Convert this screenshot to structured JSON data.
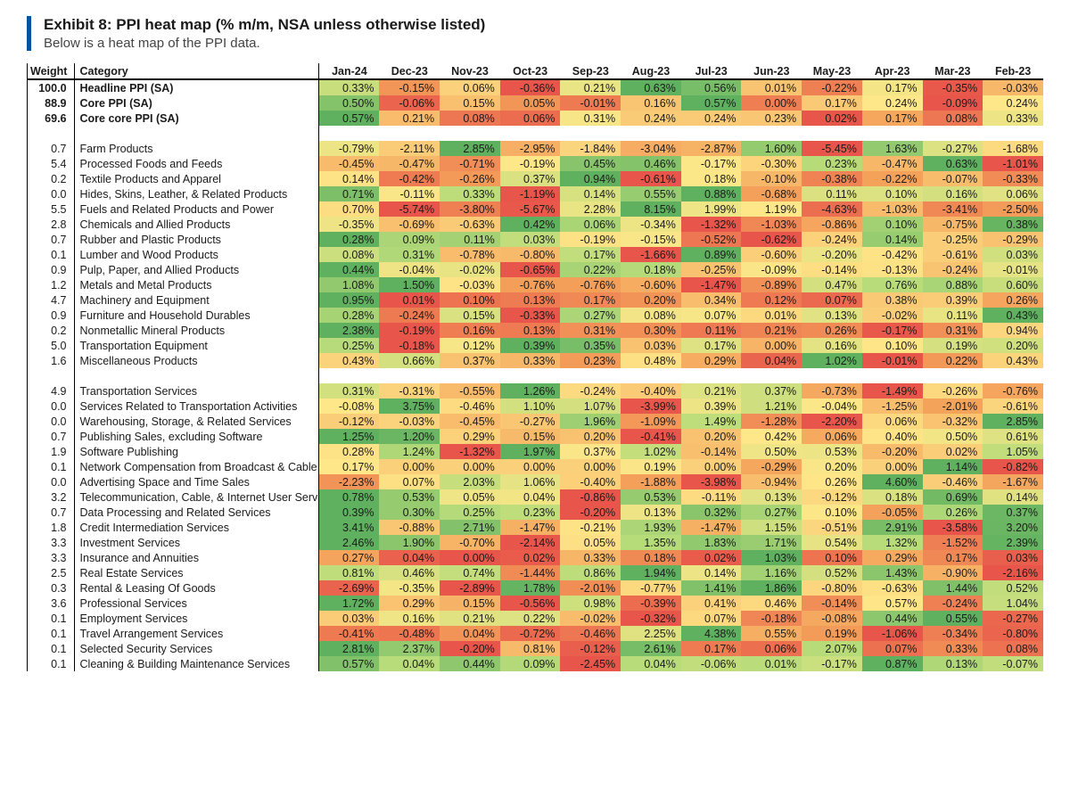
{
  "title": "Exhibit 8: PPI heat map (% m/m, NSA unless otherwise listed)",
  "subtitle": "Below is a heat map of the PPI data.",
  "weight_header": "Weight",
  "category_header": "Category",
  "months": [
    "Jan-24",
    "Dec-23",
    "Nov-23",
    "Oct-23",
    "Sep-23",
    "Aug-23",
    "Jul-23",
    "Jun-23",
    "May-23",
    "Apr-23",
    "Mar-23",
    "Feb-23"
  ],
  "color_scale": {
    "low": "#e8564b",
    "lowmid": "#f4a15a",
    "mid": "#fee789",
    "highmid": "#b9dc7a",
    "high": "#5fb15f"
  },
  "groups": [
    {
      "bold": true,
      "rows": [
        {
          "w": "100.0",
          "cat": "Headline PPI (SA)",
          "v": [
            0.33,
            -0.15,
            0.06,
            -0.36,
            0.21,
            0.63,
            0.56,
            0.01,
            -0.22,
            0.17,
            -0.35,
            -0.03
          ]
        },
        {
          "w": "88.9",
          "cat": "Core PPI (SA)",
          "v": [
            0.5,
            -0.06,
            0.15,
            0.05,
            -0.01,
            0.16,
            0.57,
            0.0,
            0.17,
            0.24,
            -0.09,
            0.24
          ]
        },
        {
          "w": "69.6",
          "cat": "Core core PPI (SA)",
          "v": [
            0.57,
            0.21,
            0.08,
            0.06,
            0.31,
            0.24,
            0.24,
            0.23,
            0.02,
            0.17,
            0.08,
            0.33
          ]
        }
      ]
    },
    {
      "bold": false,
      "rows": [
        {
          "w": "0.7",
          "cat": "Farm Products",
          "v": [
            -0.79,
            -2.11,
            2.85,
            -2.95,
            -1.84,
            -3.04,
            -2.87,
            1.6,
            -5.45,
            1.63,
            -0.27,
            -1.68
          ]
        },
        {
          "w": "5.4",
          "cat": "Processed Foods and Feeds",
          "v": [
            -0.45,
            -0.47,
            -0.71,
            -0.19,
            0.45,
            0.46,
            -0.17,
            -0.3,
            0.23,
            -0.47,
            0.63,
            -1.01
          ]
        },
        {
          "w": "0.2",
          "cat": "Textile Products and Apparel",
          "v": [
            0.14,
            -0.42,
            -0.26,
            0.37,
            0.94,
            -0.61,
            0.18,
            -0.1,
            -0.38,
            -0.22,
            -0.07,
            -0.33
          ]
        },
        {
          "w": "0.0",
          "cat": "Hides, Skins, Leather, & Related Products",
          "v": [
            0.71,
            -0.11,
            0.33,
            -1.19,
            0.14,
            0.55,
            0.88,
            -0.68,
            0.11,
            0.1,
            0.16,
            0.06
          ]
        },
        {
          "w": "5.5",
          "cat": "Fuels and Related Products and Power",
          "v": [
            0.7,
            -5.74,
            -3.8,
            -5.67,
            2.28,
            8.15,
            1.99,
            1.19,
            -4.63,
            -1.03,
            -3.41,
            -2.5
          ]
        },
        {
          "w": "2.8",
          "cat": "Chemicals and Allied Products",
          "v": [
            -0.35,
            -0.69,
            -0.63,
            0.42,
            0.06,
            -0.34,
            -1.32,
            -1.03,
            -0.86,
            0.1,
            -0.75,
            0.38
          ]
        },
        {
          "w": "0.7",
          "cat": "Rubber and Plastic Products",
          "v": [
            0.28,
            0.09,
            0.11,
            0.03,
            -0.19,
            -0.15,
            -0.52,
            -0.62,
            -0.24,
            0.14,
            -0.25,
            -0.29
          ]
        },
        {
          "w": "0.1",
          "cat": "Lumber and Wood Products",
          "v": [
            0.08,
            0.31,
            -0.78,
            -0.8,
            0.17,
            -1.66,
            0.89,
            -0.6,
            -0.2,
            -0.42,
            -0.61,
            0.03
          ]
        },
        {
          "w": "0.9",
          "cat": "Pulp, Paper, and Allied Products",
          "v": [
            0.44,
            -0.04,
            -0.02,
            -0.65,
            0.22,
            0.18,
            -0.25,
            -0.09,
            -0.14,
            -0.13,
            -0.24,
            -0.01
          ]
        },
        {
          "w": "1.2",
          "cat": "Metals and Metal Products",
          "v": [
            1.08,
            1.5,
            -0.03,
            -0.76,
            -0.76,
            -0.6,
            -1.47,
            -0.89,
            0.47,
            0.76,
            0.88,
            0.6
          ]
        },
        {
          "w": "4.7",
          "cat": "Machinery and Equipment",
          "v": [
            0.95,
            0.01,
            0.1,
            0.13,
            0.17,
            0.2,
            0.34,
            0.12,
            0.07,
            0.38,
            0.39,
            0.26
          ]
        },
        {
          "w": "0.9",
          "cat": "Furniture and Household Durables",
          "v": [
            0.28,
            -0.24,
            0.15,
            -0.33,
            0.27,
            0.08,
            0.07,
            0.01,
            0.13,
            -0.02,
            0.11,
            0.43
          ]
        },
        {
          "w": "0.2",
          "cat": "Nonmetallic Mineral Products",
          "v": [
            2.38,
            -0.19,
            0.16,
            0.13,
            0.31,
            0.3,
            0.11,
            0.21,
            0.26,
            -0.17,
            0.31,
            0.94
          ]
        },
        {
          "w": "5.0",
          "cat": "Transportation Equipment",
          "v": [
            0.25,
            -0.18,
            0.12,
            0.39,
            0.35,
            0.03,
            0.17,
            0.0,
            0.16,
            0.1,
            0.19,
            0.2
          ]
        },
        {
          "w": "1.6",
          "cat": "Miscellaneous Products",
          "v": [
            0.43,
            0.66,
            0.37,
            0.33,
            0.23,
            0.48,
            0.29,
            0.04,
            1.02,
            -0.01,
            0.22,
            0.43
          ]
        }
      ]
    },
    {
      "bold": false,
      "rows": [
        {
          "w": "4.9",
          "cat": "Transportation Services",
          "v": [
            0.31,
            -0.31,
            -0.55,
            1.26,
            -0.24,
            -0.4,
            0.21,
            0.37,
            -0.73,
            -1.49,
            -0.26,
            -0.76
          ]
        },
        {
          "w": "0.0",
          "cat": "Services Related to Transportation Activities",
          "v": [
            -0.08,
            3.75,
            -0.46,
            1.1,
            1.07,
            -3.99,
            0.39,
            1.21,
            -0.04,
            -1.25,
            -2.01,
            -0.61
          ]
        },
        {
          "w": "0.0",
          "cat": "Warehousing, Storage, & Related Services",
          "v": [
            -0.12,
            -0.03,
            -0.45,
            -0.27,
            1.96,
            -1.09,
            1.49,
            -1.28,
            -2.2,
            0.06,
            -0.32,
            2.85
          ]
        },
        {
          "w": "0.7",
          "cat": "Publishing Sales, excluding Software",
          "v": [
            1.25,
            1.2,
            0.29,
            0.15,
            0.2,
            -0.41,
            0.2,
            0.42,
            0.06,
            0.4,
            0.5,
            0.61
          ]
        },
        {
          "w": "1.9",
          "cat": "Software Publishing",
          "v": [
            0.28,
            1.24,
            -1.32,
            1.97,
            0.37,
            1.02,
            -0.14,
            0.5,
            0.53,
            -0.2,
            0.02,
            1.05
          ]
        },
        {
          "w": "0.1",
          "cat": "Network Compensation from Broadcast & Cable Telev",
          "v": [
            0.17,
            0.0,
            0.0,
            0.0,
            0.0,
            0.19,
            0.0,
            -0.29,
            0.2,
            0.0,
            1.14,
            -0.82
          ]
        },
        {
          "w": "0.0",
          "cat": "Advertising Space and Time Sales",
          "v": [
            -2.23,
            0.07,
            2.03,
            1.06,
            -0.4,
            -1.88,
            -3.98,
            -0.94,
            0.26,
            4.6,
            -0.46,
            -1.67
          ]
        },
        {
          "w": "3.2",
          "cat": "Telecommunication, Cable, & Internet User Service",
          "v": [
            0.78,
            0.53,
            0.05,
            0.04,
            -0.86,
            0.53,
            -0.11,
            0.13,
            -0.12,
            0.18,
            0.69,
            0.14
          ]
        },
        {
          "w": "0.7",
          "cat": "Data Processing and Related Services",
          "v": [
            0.39,
            0.3,
            0.25,
            0.23,
            -0.2,
            0.13,
            0.32,
            0.27,
            0.1,
            -0.05,
            0.26,
            0.37
          ]
        },
        {
          "w": "1.8",
          "cat": "Credit Intermediation Services",
          "v": [
            3.41,
            -0.88,
            2.71,
            -1.47,
            -0.21,
            1.93,
            -1.47,
            1.15,
            -0.51,
            2.91,
            -3.58,
            3.2
          ]
        },
        {
          "w": "3.3",
          "cat": "Investment Services",
          "v": [
            2.46,
            1.9,
            -0.7,
            -2.14,
            0.05,
            1.35,
            1.83,
            1.71,
            0.54,
            1.32,
            -1.52,
            2.39
          ]
        },
        {
          "w": "3.3",
          "cat": "Insurance and Annuities",
          "v": [
            0.27,
            0.04,
            0.0,
            0.02,
            0.33,
            0.18,
            0.02,
            1.03,
            0.1,
            0.29,
            0.17,
            0.03
          ]
        },
        {
          "w": "2.5",
          "cat": "Real Estate Services",
          "v": [
            0.81,
            0.46,
            0.74,
            -1.44,
            0.86,
            1.94,
            0.14,
            1.16,
            0.52,
            1.43,
            -0.9,
            -2.16
          ]
        },
        {
          "w": "0.3",
          "cat": "Rental & Leasing Of Goods",
          "v": [
            -2.69,
            -0.35,
            -2.89,
            1.78,
            -2.01,
            -0.77,
            1.41,
            1.86,
            -0.8,
            -0.63,
            1.44,
            0.52
          ]
        },
        {
          "w": "3.6",
          "cat": "Professional Services",
          "v": [
            1.72,
            0.29,
            0.15,
            -0.56,
            0.98,
            -0.39,
            0.41,
            0.46,
            -0.14,
            0.57,
            -0.24,
            1.04
          ]
        },
        {
          "w": "0.1",
          "cat": "Employment Services",
          "v": [
            0.03,
            0.16,
            0.21,
            0.22,
            -0.02,
            -0.32,
            0.07,
            -0.18,
            -0.08,
            0.44,
            0.55,
            -0.27
          ]
        },
        {
          "w": "0.1",
          "cat": "Travel Arrangement Services",
          "v": [
            -0.41,
            -0.48,
            0.04,
            -0.72,
            -0.46,
            2.25,
            4.38,
            0.55,
            0.19,
            -1.06,
            -0.34,
            -0.8
          ]
        },
        {
          "w": "0.1",
          "cat": "Selected Security Services",
          "v": [
            2.81,
            2.37,
            -0.2,
            0.81,
            -0.12,
            2.61,
            0.17,
            0.06,
            2.07,
            0.07,
            0.33,
            0.08
          ]
        },
        {
          "w": "0.1",
          "cat": "Cleaning & Building Maintenance Services",
          "v": [
            0.57,
            0.04,
            0.44,
            0.09,
            -2.45,
            0.04,
            -0.06,
            0.01,
            -0.17,
            0.87,
            0.13,
            -0.07
          ]
        }
      ]
    }
  ]
}
